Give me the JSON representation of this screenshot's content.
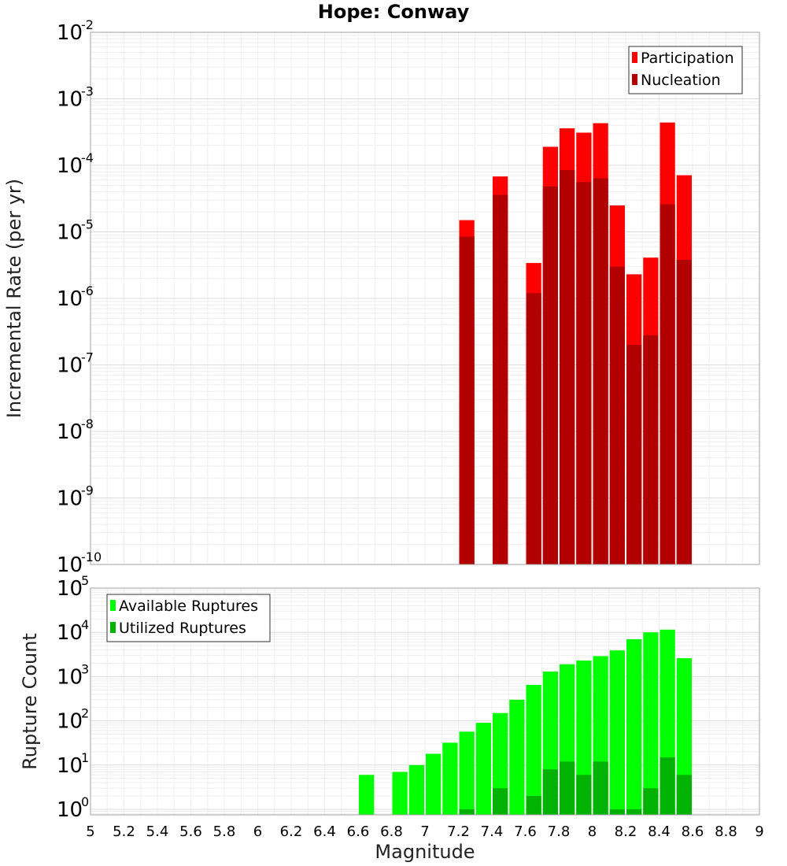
{
  "chart_data": {
    "type": "bar",
    "title": "Hope: Conway",
    "xlabel": "Magnitude",
    "x_ticks": [
      "5",
      "5.2",
      "5.4",
      "5.6",
      "5.8",
      "6",
      "6.2",
      "6.4",
      "6.6",
      "6.8",
      "7",
      "7.2",
      "7.4",
      "7.6",
      "7.8",
      "8",
      "8.2",
      "8.4",
      "8.6",
      "8.8",
      "9"
    ],
    "xlim": [
      5,
      9
    ],
    "bin_width": 0.1,
    "grid": true,
    "panels": [
      {
        "ylabel": "Incremental Rate (per yr)",
        "yscale": "log",
        "ylim": [
          1e-10,
          0.01
        ],
        "y_tick_exponents": [
          "-10",
          "-9",
          "-8",
          "-7",
          "-6",
          "-5",
          "-4",
          "-3",
          "-2"
        ],
        "y_tick_base": "10",
        "legend_position": "top-right",
        "series": [
          {
            "name": "Participation",
            "color": "#ff0000",
            "x": [
              7.25,
              7.45,
              7.65,
              7.75,
              7.85,
              7.95,
              8.05,
              8.15,
              8.25,
              8.35,
              8.45,
              8.55
            ],
            "values": [
              1.5e-05,
              6.8e-05,
              3.4e-06,
              0.00019,
              0.00036,
              0.00031,
              0.00043,
              2.5e-05,
              2.3e-06,
              4.1e-06,
              0.00044,
              7.1e-05
            ]
          },
          {
            "name": "Nucleation",
            "color": "#b20000",
            "x": [
              7.25,
              7.45,
              7.65,
              7.75,
              7.85,
              7.95,
              8.05,
              8.15,
              8.25,
              8.35,
              8.45,
              8.55
            ],
            "values": [
              8.5e-06,
              3.6e-05,
              1.2e-06,
              4.8e-05,
              8.5e-05,
              5.6e-05,
              6.4e-05,
              3e-06,
              2e-07,
              2.8e-07,
              2.6e-05,
              3.8e-06
            ]
          }
        ]
      },
      {
        "ylabel": "Rupture Count",
        "yscale": "log",
        "ylim": [
          0.75,
          100000.0
        ],
        "y_tick_exponents": [
          "0",
          "1",
          "2",
          "3",
          "4",
          "5"
        ],
        "y_tick_base": "10",
        "legend_position": "top-left",
        "series": [
          {
            "name": "Available Ruptures",
            "color": "#00ff00",
            "x": [
              6.65,
              6.85,
              6.95,
              7.05,
              7.15,
              7.25,
              7.35,
              7.45,
              7.55,
              7.65,
              7.75,
              7.85,
              7.95,
              8.05,
              8.15,
              8.25,
              8.35,
              8.45,
              8.55
            ],
            "values": [
              6,
              7,
              10,
              18,
              32,
              57,
              90,
              150,
              300,
              650,
              1300,
              1900,
              2300,
              2900,
              3900,
              7000,
              10000,
              11500,
              2600
            ]
          },
          {
            "name": "Utilized Ruptures",
            "color": "#00b200",
            "x": [
              7.25,
              7.45,
              7.65,
              7.75,
              7.85,
              7.95,
              8.05,
              8.15,
              8.25,
              8.35,
              8.45,
              8.55
            ],
            "values": [
              1,
              3,
              2,
              8,
              12,
              6,
              12,
              1,
              1,
              3,
              15,
              6
            ]
          }
        ]
      }
    ]
  }
}
